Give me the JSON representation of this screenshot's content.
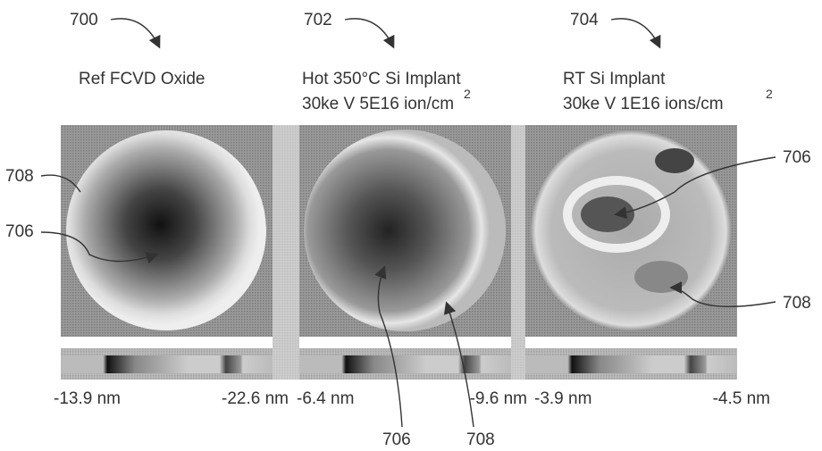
{
  "panels": [
    {
      "ref": "700",
      "title_lines": [
        "Ref FCVD Oxide"
      ],
      "scale_min": "-13.9 nm",
      "scale_max": "-22.6 nm"
    },
    {
      "ref": "702",
      "title_lines": [
        "Hot 350°C Si Implant",
        "30ke V 5E16 ion/cm"
      ],
      "superscript": "2",
      "scale_min": "-6.4 nm",
      "scale_max": "-9.6 nm"
    },
    {
      "ref": "704",
      "title_lines": [
        "RT Si Implant",
        "30ke V 1E16 ions/cm"
      ],
      "superscript": "2",
      "scale_min": "-3.9 nm",
      "scale_max": "-4.5 nm"
    }
  ],
  "callouts": [
    {
      "label": "708"
    },
    {
      "label": "706"
    },
    {
      "label": "706"
    },
    {
      "label": "708"
    },
    {
      "label": "706"
    },
    {
      "label": "708"
    }
  ]
}
